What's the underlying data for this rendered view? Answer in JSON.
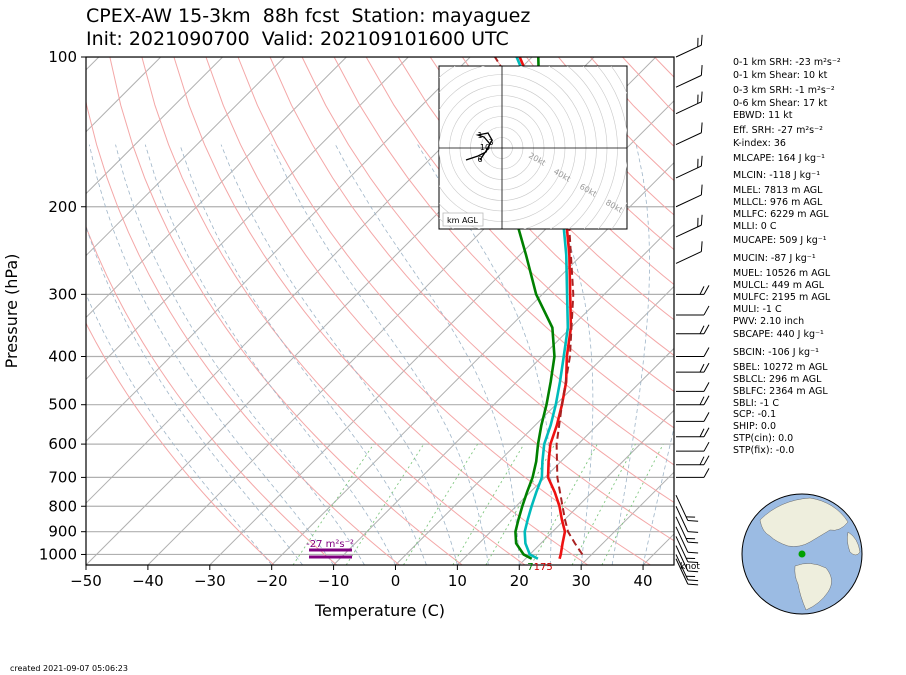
{
  "header": {
    "line1": "CPEX-AW 15-3km  88h fcst  Station: mayaguez",
    "line2": "Init: 2021090700  Valid: 202109101600 UTC"
  },
  "chart_data": {
    "type": "line",
    "title": "CPEX-AW 15-3km  88h fcst  Station: mayaguez",
    "xlabel": "Temperature (C)",
    "ylabel": "Pressure (hPa)",
    "xlim": [
      -50,
      45
    ],
    "ylim": [
      1050,
      100
    ],
    "yscale": "log",
    "x_ticks": [
      -50,
      -40,
      -30,
      -20,
      -10,
      0,
      10,
      20,
      30,
      40
    ],
    "x_tick_labels": [
      "−50",
      "−40",
      "−30",
      "−20",
      "−10",
      "0",
      "10",
      "20",
      "30",
      "40"
    ],
    "y_ticks": [
      1000,
      900,
      800,
      700,
      600,
      500,
      400,
      300,
      200,
      100
    ],
    "y_tick_labels": [
      "1000",
      "900",
      "800",
      "700",
      "600",
      "500",
      "400",
      "300",
      "200",
      "100"
    ],
    "series": [
      {
        "color": "#ee1111",
        "p": [
          1020,
          1000,
          950,
          900,
          850,
          800,
          750,
          700,
          650,
          600,
          550,
          500,
          450,
          400,
          350,
          300,
          250,
          200,
          150,
          120,
          100
        ],
        "t": [
          25.5,
          25.0,
          23.5,
          22.0,
          19.5,
          17.0,
          14.0,
          10.5,
          8.0,
          5.5,
          3.5,
          1.0,
          -2.0,
          -6.0,
          -10.0,
          -15.5,
          -22.0,
          -30.5,
          -42.0,
          -53.0,
          -62.0
        ]
      },
      {
        "color": "#00bbbb",
        "p": [
          1020,
          1000,
          950,
          900,
          850,
          800,
          750,
          700,
          650,
          600,
          550,
          500,
          450,
          400,
          350,
          300,
          250,
          200,
          150,
          120,
          100
        ],
        "t": [
          22.0,
          20.0,
          17.5,
          15.5,
          14.0,
          12.5,
          11.0,
          9.5,
          7.0,
          4.5,
          2.5,
          0.0,
          -3.0,
          -6.5,
          -10.5,
          -16.0,
          -22.5,
          -31.0,
          -42.5,
          -53.5,
          -62.5
        ]
      },
      {
        "color": "#008000",
        "p": [
          1020,
          1000,
          950,
          900,
          850,
          800,
          750,
          700,
          650,
          600,
          550,
          500,
          450,
          400,
          350,
          300,
          250,
          200,
          175,
          150,
          130,
          115,
          100
        ],
        "t": [
          21.0,
          19.0,
          16.0,
          14.0,
          12.5,
          11.0,
          9.5,
          8.0,
          6.0,
          3.5,
          1.0,
          -1.5,
          -4.5,
          -8.0,
          -13.0,
          -21.0,
          -29.0,
          -39.0,
          -42.0,
          -47.0,
          -51.0,
          -54.0,
          -59.0
        ]
      },
      {
        "color": "#aa2222",
        "dashed": true,
        "p": [
          1000,
          950,
          900,
          850,
          800,
          700,
          600,
          500,
          400,
          300,
          200,
          150,
          100
        ],
        "t": [
          28.5,
          25.5,
          22.5,
          20.0,
          17.5,
          12.0,
          6.5,
          1.0,
          -5.5,
          -15.0,
          -30.0,
          -43.0,
          -66.0
        ]
      }
    ],
    "labels": {
      "lcl_label": "7",
      "lfc_label": "175",
      "srh_label": "-27 m²s⁻²",
      "knot_label": "knot"
    },
    "hodograph": {
      "rings": [
        "20kt",
        "40kt",
        "60kt",
        "80kt"
      ],
      "heights": [
        "1",
        "3",
        "10",
        "6"
      ],
      "box_label": "km AGL"
    },
    "indices": [
      "0-1 km SRH: -23 m²s⁻²",
      "0-1 km Shear: 10 kt",
      "0-3 km SRH: -1 m²s⁻²",
      "0-6 km Shear: 17 kt",
      "EBWD: 11 kt",
      "Eff. SRH: -27 m²s⁻²",
      "K-index: 36",
      "MLCAPE: 164 J kg⁻¹",
      "MLCIN: -118 J kg⁻¹",
      "MLEL: 7813 m AGL",
      "MLLCL: 976 m AGL",
      "MLLFC: 6229 m AGL",
      "MLLI: 0 C",
      "MUCAPE: 509 J kg⁻¹",
      "MUCIN: -87 J kg⁻¹",
      "MUEL: 10526 m AGL",
      "MULCL: 449 m AGL",
      "MULFC: 2195 m AGL",
      "MULI: -1 C",
      "PWV: 2.10 inch",
      "SBCAPE: 440 J kg⁻¹",
      "SBCIN: -106 J kg⁻¹",
      "SBEL: 10272 m AGL",
      "SBLCL: 296 m AGL",
      "SBLFC: 2364 m AGL",
      "SBLI: -1 C",
      "SCP: -0.1",
      "SHIP: 0.0",
      "STP(cin): 0.0",
      "STP(fix): -0.0"
    ]
  },
  "footer": {
    "created": "created 2021-09-07 05:06:23"
  }
}
